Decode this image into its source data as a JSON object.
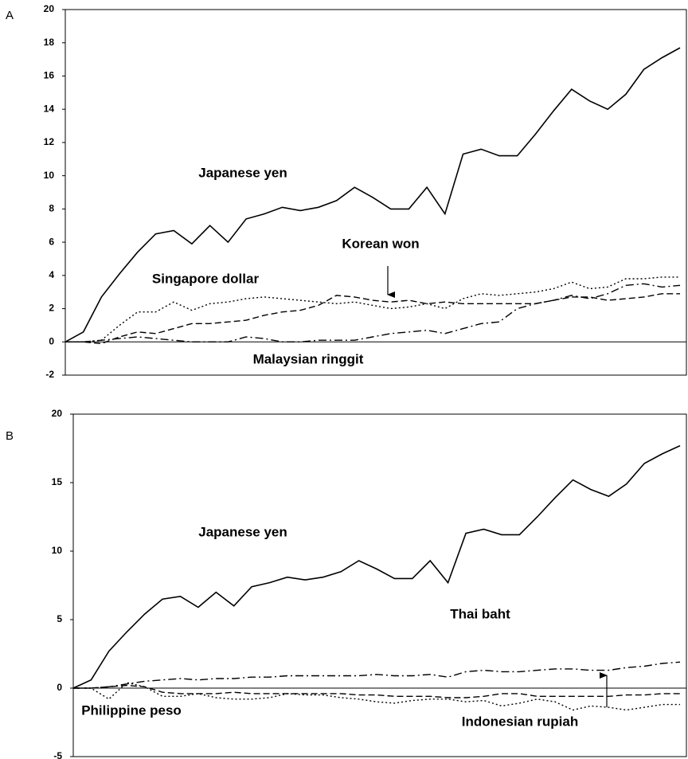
{
  "chart_data": [
    {
      "type": "line",
      "label": "A",
      "ylim": [
        -2,
        20
      ],
      "yticks": [
        -2,
        0,
        2,
        4,
        6,
        8,
        10,
        12,
        14,
        16,
        18,
        20
      ],
      "annotations": [
        "Japanese yen",
        "Singapore dollar",
        "Korean won",
        "Malaysian ringgit"
      ],
      "series": [
        {
          "name": "Japanese yen",
          "color": "#000000",
          "style": "solid",
          "values": [
            0,
            0.6,
            2.7,
            4.1,
            5.4,
            6.5,
            6.7,
            5.9,
            7.0,
            6.0,
            7.4,
            7.7,
            8.1,
            7.9,
            8.1,
            8.5,
            9.3,
            8.7,
            8.0,
            8.0,
            9.3,
            7.7,
            11.3,
            11.6,
            11.2,
            11.2,
            12.5,
            13.9,
            15.2,
            14.5,
            14.0,
            14.9,
            16.4,
            17.1,
            17.7
          ]
        },
        {
          "name": "Singapore dollar",
          "color": "#000000",
          "style": "dotted",
          "values": [
            0,
            0,
            0.1,
            1.0,
            1.8,
            1.8,
            2.4,
            1.9,
            2.3,
            2.4,
            2.6,
            2.7,
            2.6,
            2.5,
            2.4,
            2.3,
            2.4,
            2.2,
            2.0,
            2.1,
            2.3,
            2.0,
            2.6,
            2.9,
            2.8,
            2.9,
            3.0,
            3.2,
            3.6,
            3.2,
            3.3,
            3.8,
            3.8,
            3.9,
            3.9
          ]
        },
        {
          "name": "Korean won",
          "color": "#000000",
          "style": "dashed",
          "values": [
            0,
            0,
            -0.1,
            0.3,
            0.6,
            0.5,
            0.8,
            1.1,
            1.1,
            1.2,
            1.3,
            1.6,
            1.8,
            1.9,
            2.2,
            2.8,
            2.7,
            2.5,
            2.4,
            2.5,
            2.3,
            2.4,
            2.3,
            2.3,
            2.3,
            2.3,
            2.3,
            2.5,
            2.7,
            2.7,
            2.5,
            2.6,
            2.7,
            2.9,
            2.9
          ]
        },
        {
          "name": "Malaysian ringgit",
          "color": "#000000",
          "style": "dashdot",
          "values": [
            0,
            0,
            0.1,
            0.2,
            0.3,
            0.2,
            0.1,
            0.0,
            0.0,
            0.0,
            0.3,
            0.2,
            0.0,
            0.0,
            0.1,
            0.1,
            0.1,
            0.3,
            0.5,
            0.6,
            0.7,
            0.5,
            0.8,
            1.1,
            1.2,
            2.0,
            2.3,
            2.5,
            2.8,
            2.6,
            2.9,
            3.4,
            3.5,
            3.3,
            3.4
          ]
        }
      ]
    },
    {
      "type": "line",
      "label": "B",
      "ylim": [
        -5,
        20
      ],
      "yticks": [
        -5,
        0,
        5,
        10,
        15,
        20
      ],
      "annotations": [
        "Japanese yen",
        "Thai baht",
        "Philippine peso",
        "Indonesian rupiah"
      ],
      "series": [
        {
          "name": "Japanese yen",
          "color": "#000000",
          "style": "solid",
          "values": [
            0,
            0.6,
            2.7,
            4.1,
            5.4,
            6.5,
            6.7,
            5.9,
            7.0,
            6.0,
            7.4,
            7.7,
            8.1,
            7.9,
            8.1,
            8.5,
            9.3,
            8.7,
            8.0,
            8.0,
            9.3,
            7.7,
            11.3,
            11.6,
            11.2,
            11.2,
            12.5,
            13.9,
            15.2,
            14.5,
            14.0,
            14.9,
            16.4,
            17.1,
            17.7
          ]
        },
        {
          "name": "Thai baht",
          "color": "#000000",
          "style": "dashdot",
          "values": [
            0,
            0,
            0.1,
            0.3,
            0.5,
            0.6,
            0.7,
            0.6,
            0.7,
            0.7,
            0.8,
            0.8,
            0.9,
            0.9,
            0.9,
            0.9,
            0.9,
            1.0,
            0.9,
            0.9,
            1.0,
            0.8,
            1.2,
            1.3,
            1.2,
            1.2,
            1.3,
            1.4,
            1.4,
            1.3,
            1.3,
            1.5,
            1.6,
            1.8,
            1.9
          ]
        },
        {
          "name": "Philippine peso",
          "color": "#000000",
          "style": "dashed",
          "values": [
            0,
            0,
            0.1,
            0.2,
            0.1,
            -0.3,
            -0.4,
            -0.4,
            -0.4,
            -0.3,
            -0.4,
            -0.4,
            -0.4,
            -0.4,
            -0.4,
            -0.4,
            -0.5,
            -0.5,
            -0.6,
            -0.6,
            -0.6,
            -0.7,
            -0.7,
            -0.6,
            -0.4,
            -0.4,
            -0.6,
            -0.6,
            -0.6,
            -0.6,
            -0.6,
            -0.5,
            -0.5,
            -0.4,
            -0.4
          ]
        },
        {
          "name": "Indonesian rupiah",
          "color": "#000000",
          "style": "dotted",
          "values": [
            0,
            0,
            -0.8,
            0.4,
            0.1,
            -0.6,
            -0.6,
            -0.4,
            -0.7,
            -0.8,
            -0.8,
            -0.7,
            -0.4,
            -0.5,
            -0.5,
            -0.7,
            -0.8,
            -1.0,
            -1.1,
            -0.9,
            -0.8,
            -0.8,
            -1.0,
            -0.9,
            -1.3,
            -1.1,
            -0.8,
            -1.0,
            -1.6,
            -1.3,
            -1.4,
            -1.6,
            -1.4,
            -1.2,
            -1.2
          ]
        }
      ]
    }
  ]
}
